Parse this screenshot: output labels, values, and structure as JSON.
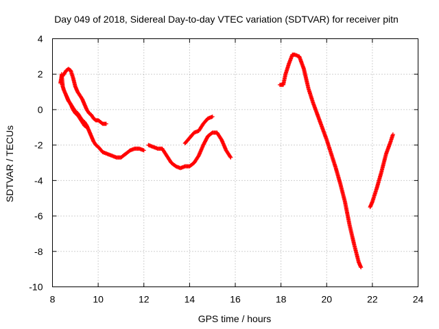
{
  "chart_data": {
    "type": "scatter",
    "title": "Day 049 of 2018, Sidereal Day-to-day VTEC variation (SDTVAR) for receiver pitn",
    "xlabel": "GPS time / hours",
    "ylabel": "SDTVAR / TECUs",
    "xlim": [
      8,
      24
    ],
    "ylim": [
      -10,
      4
    ],
    "xticks": [
      8,
      10,
      12,
      14,
      16,
      18,
      20,
      22,
      24
    ],
    "yticks": [
      -10,
      -8,
      -6,
      -4,
      -2,
      0,
      2,
      4
    ],
    "grid": true,
    "legend": "none",
    "marker": "plus",
    "color": "#ff0000",
    "series": [
      {
        "x": [
          8.35,
          8.4,
          8.45,
          8.5,
          8.6,
          8.7,
          8.8,
          8.9,
          9.0,
          9.1,
          9.2,
          9.3,
          9.4,
          9.5,
          9.6,
          9.7,
          9.8,
          9.9,
          10.0,
          10.1,
          10.2,
          10.35
        ],
        "y": [
          1.5,
          1.9,
          1.9,
          2.0,
          2.2,
          2.3,
          2.2,
          1.8,
          1.3,
          1.0,
          0.8,
          0.6,
          0.3,
          0.0,
          -0.2,
          -0.3,
          -0.5,
          -0.6,
          -0.6,
          -0.7,
          -0.8,
          -0.8
        ]
      },
      {
        "x": [
          8.4,
          8.45,
          8.5,
          8.6,
          8.7,
          8.8,
          8.9,
          9.0,
          9.1,
          9.2,
          9.3,
          9.4,
          9.5,
          9.6,
          9.7,
          9.8,
          9.9,
          10.0,
          10.2,
          10.4,
          10.6,
          10.8,
          11.0,
          11.2,
          11.4,
          11.6,
          11.8,
          12.0
        ],
        "y": [
          2.0,
          1.3,
          1.1,
          0.8,
          0.5,
          0.3,
          0.1,
          -0.1,
          -0.2,
          -0.4,
          -0.6,
          -0.7,
          -0.9,
          -1.2,
          -1.5,
          -1.8,
          -2.0,
          -2.1,
          -2.4,
          -2.5,
          -2.6,
          -2.7,
          -2.7,
          -2.5,
          -2.3,
          -2.2,
          -2.2,
          -2.3
        ]
      },
      {
        "x": [
          8.6,
          8.7,
          8.8,
          8.9,
          9.0,
          9.1,
          9.2,
          9.3,
          9.4,
          9.5
        ],
        "y": [
          0.8,
          0.5,
          0.3,
          0.0,
          -0.2,
          -0.3,
          -0.5,
          -0.7,
          -0.9,
          -1.0
        ]
      },
      {
        "x": [
          12.2,
          12.4,
          12.6,
          12.8,
          13.0,
          13.2,
          13.4,
          13.6,
          13.8,
          14.0,
          14.2,
          14.4,
          14.6,
          14.8,
          15.0,
          15.2,
          15.4,
          15.6,
          15.8
        ],
        "y": [
          -2.0,
          -2.1,
          -2.2,
          -2.2,
          -2.6,
          -3.0,
          -3.2,
          -3.3,
          -3.2,
          -3.2,
          -3.0,
          -2.6,
          -2.0,
          -1.5,
          -1.3,
          -1.3,
          -1.7,
          -2.3,
          -2.7
        ]
      },
      {
        "x": [
          13.8,
          14.0,
          14.2,
          14.4,
          14.6,
          14.8,
          15.0
        ],
        "y": [
          -1.9,
          -1.6,
          -1.3,
          -1.2,
          -0.8,
          -0.5,
          -0.4
        ]
      },
      {
        "x": [
          17.95,
          18.1,
          18.2,
          18.35,
          18.5,
          18.6,
          18.8,
          19.0,
          19.2,
          19.4,
          19.6,
          19.8,
          20.0,
          20.2,
          20.4,
          20.6,
          20.8,
          21.0,
          21.2,
          21.4,
          21.5
        ],
        "y": [
          1.4,
          1.4,
          2.0,
          2.6,
          3.1,
          3.1,
          3.0,
          2.3,
          1.2,
          0.4,
          -0.3,
          -1.0,
          -1.7,
          -2.5,
          -3.3,
          -4.2,
          -5.2,
          -6.5,
          -7.6,
          -8.6,
          -8.9
        ]
      },
      {
        "x": [
          21.9,
          22.0,
          22.2,
          22.4,
          22.6,
          22.8,
          22.9
        ],
        "y": [
          -5.5,
          -5.2,
          -4.4,
          -3.5,
          -2.5,
          -1.8,
          -1.4
        ]
      }
    ]
  }
}
